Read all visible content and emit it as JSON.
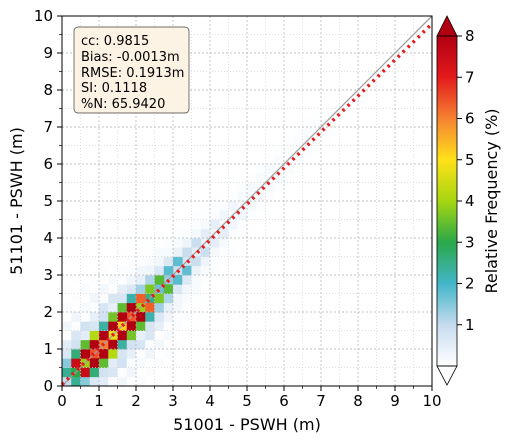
{
  "chart_data": {
    "type": "heatmap",
    "title": "",
    "xlabel": "51001 - PSWH (m)",
    "ylabel": "51101 - PSWH (m)",
    "xlim": [
      0,
      10
    ],
    "ylim": [
      0,
      10
    ],
    "x_ticks": [
      "0",
      "1",
      "2",
      "3",
      "4",
      "5",
      "6",
      "7",
      "8",
      "9",
      "10"
    ],
    "y_ticks": [
      "0",
      "1",
      "2",
      "3",
      "4",
      "5",
      "6",
      "7",
      "8",
      "9",
      "10"
    ],
    "bin_size": 0.25,
    "grid": true,
    "one_to_one_line": true,
    "fit_line": {
      "style": "dotted",
      "color": "#e41a1c",
      "slope": 0.975,
      "intercept": 0.04
    },
    "stats_box": {
      "lines": [
        "cc: 0.9815",
        "Bias: -0.0013m",
        "RMSE: 0.1913m",
        "SI: 0.1118",
        "%N: 65.9420"
      ],
      "position": "top-left"
    },
    "colorbar": {
      "label": "Relative Frequency (%)",
      "range": [
        0,
        8
      ],
      "ticks": [
        "1",
        "2",
        "3",
        "4",
        "5",
        "6",
        "7",
        "8"
      ],
      "colors": [
        "#ffffff",
        "#c6dbef",
        "#42b5c8",
        "#2aa84a",
        "#a6d610",
        "#ffe119",
        "#f58231",
        "#e41a1c",
        "#b00012"
      ]
    },
    "diagonal_cells": [
      [
        0.125,
        0.1
      ],
      [
        0.375,
        1.6
      ],
      [
        0.625,
        3.8
      ],
      [
        0.875,
        6.4
      ],
      [
        1.125,
        6.0
      ],
      [
        1.375,
        4.1
      ],
      [
        1.625,
        5.2
      ],
      [
        1.875,
        6.4
      ],
      [
        2.125,
        3.2
      ],
      [
        2.375,
        2.4
      ],
      [
        2.625,
        1.7
      ],
      [
        2.875,
        1.2
      ],
      [
        3.125,
        0.9
      ],
      [
        3.375,
        0.6
      ],
      [
        3.625,
        0.45
      ],
      [
        3.875,
        0.3
      ],
      [
        4.125,
        0.22
      ],
      [
        4.375,
        0.17
      ],
      [
        4.625,
        0.13
      ],
      [
        4.875,
        0.1
      ],
      [
        5.125,
        0.09
      ],
      [
        5.375,
        0.08
      ],
      [
        5.625,
        0.07
      ],
      [
        5.875,
        0.06
      ],
      [
        6.125,
        0.05
      ],
      [
        6.375,
        0.05
      ],
      [
        6.625,
        0.04
      ],
      [
        6.875,
        0.03
      ],
      [
        7.125,
        0.02
      ]
    ],
    "spread": [
      1.8,
      0.35,
      0.12,
      0.035,
      0.012
    ]
  }
}
